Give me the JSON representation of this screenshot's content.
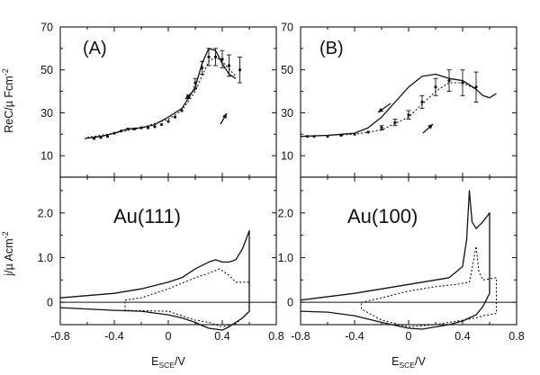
{
  "figure": {
    "x_tick_labels": [
      "-0.8",
      "-0.4",
      "0",
      "0.4",
      "0.8"
    ],
    "x_label_main": "E",
    "x_label_sub": "SCE",
    "x_label_unit": "/V",
    "top_y_label": "ReC/µ Fcm",
    "top_y_label_exp": "-2",
    "bottom_y_label": "j/µ Acm",
    "bottom_y_label_exp": "-2",
    "top_y_ticks": [
      "10",
      "30",
      "50",
      "70"
    ],
    "bottom_y_ticks": [
      "0",
      "1.0",
      "2.0"
    ]
  },
  "panels": {
    "A": {
      "label": "(A)",
      "sample": "Au(111)"
    },
    "B": {
      "label": "(B)",
      "sample": "Au(100)"
    }
  },
  "chart_data": [
    {
      "id": "A-top",
      "type": "line",
      "title": "(A)",
      "xlabel": "E_SCE/V",
      "ylabel": "ReC/µ Fcm-2",
      "xlim": [
        -0.8,
        0.8
      ],
      "ylim": [
        0,
        70
      ],
      "series": [
        {
          "name": "solid",
          "style": "solid",
          "x": [
            -0.62,
            -0.5,
            -0.4,
            -0.3,
            -0.2,
            -0.1,
            0.0,
            0.1,
            0.2,
            0.25,
            0.3,
            0.35,
            0.4,
            0.45,
            0.5
          ],
          "y": [
            18,
            19,
            20.5,
            22.5,
            23,
            24.5,
            28,
            32,
            42,
            53,
            60,
            59,
            53,
            48,
            46
          ]
        },
        {
          "name": "dotted",
          "style": "dotted",
          "x": [
            -0.6,
            -0.4,
            -0.2,
            0.0,
            0.1,
            0.2,
            0.3,
            0.35,
            0.4,
            0.5
          ],
          "y": [
            18.5,
            20.5,
            23,
            27,
            31,
            40,
            54,
            56,
            54,
            47
          ]
        },
        {
          "name": "experimental",
          "style": "points",
          "x": [
            -0.55,
            -0.5,
            -0.45,
            -0.4,
            -0.35,
            -0.3,
            -0.25,
            -0.2,
            -0.15,
            -0.1,
            -0.05,
            0.0,
            0.05,
            0.1,
            0.15,
            0.2,
            0.25,
            0.3,
            0.35,
            0.4,
            0.45,
            0.53
          ],
          "y": [
            18,
            18.5,
            19,
            20.5,
            21.5,
            22.5,
            22.5,
            23,
            23,
            23.5,
            24.5,
            26,
            28,
            31,
            37,
            44,
            51,
            56,
            56,
            55,
            52,
            50
          ],
          "err": [
            0,
            0,
            0,
            0,
            0,
            0,
            0,
            0,
            0,
            0,
            0,
            0,
            0,
            0,
            0,
            2,
            3,
            4,
            4,
            4,
            5,
            6
          ]
        }
      ]
    },
    {
      "id": "A-bottom",
      "type": "line",
      "title": "Au(111)",
      "xlabel": "E_SCE/V",
      "ylabel": "j/µ Acm-2",
      "xlim": [
        -0.8,
        0.8
      ],
      "ylim": [
        -0.5,
        2.8
      ],
      "series": [
        {
          "name": "solid",
          "style": "solid",
          "x": [
            -0.8,
            -0.6,
            -0.4,
            -0.2,
            0.0,
            0.1,
            0.2,
            0.3,
            0.35,
            0.4,
            0.45,
            0.5,
            0.55,
            0.6,
            0.6,
            0.55,
            0.5,
            0.45,
            0.4,
            0.35,
            0.3,
            0.25,
            0.2,
            0.1,
            0.0,
            -0.2,
            -0.4,
            -0.6,
            -0.8
          ],
          "y": [
            0.1,
            0.15,
            0.2,
            0.3,
            0.45,
            0.55,
            0.75,
            0.9,
            0.95,
            0.9,
            0.9,
            0.95,
            1.2,
            1.6,
            -0.2,
            -0.35,
            -0.45,
            -0.55,
            -0.62,
            -0.6,
            -0.58,
            -0.52,
            -0.45,
            -0.35,
            -0.28,
            -0.2,
            -0.18,
            -0.15,
            -0.12
          ]
        },
        {
          "name": "dotted",
          "style": "dotted",
          "x": [
            -0.32,
            -0.2,
            0.0,
            0.2,
            0.3,
            0.38,
            0.45,
            0.5,
            0.6,
            0.6,
            0.55,
            0.5,
            0.4,
            0.35,
            0.3,
            0.2,
            0.1,
            0.0,
            -0.32,
            -0.32
          ],
          "y": [
            0.05,
            0.1,
            0.3,
            0.55,
            0.65,
            0.75,
            0.6,
            0.45,
            0.45,
            -0.2,
            -0.35,
            -0.48,
            -0.55,
            -0.5,
            -0.45,
            -0.4,
            -0.3,
            -0.2,
            -0.18,
            0.05
          ]
        }
      ]
    },
    {
      "id": "B-top",
      "type": "line",
      "title": "(B)",
      "xlabel": "E_SCE/V",
      "ylabel": "ReC/µ Fcm-2",
      "xlim": [
        -0.8,
        0.8
      ],
      "ylim": [
        0,
        70
      ],
      "series": [
        {
          "name": "solid",
          "style": "solid",
          "x": [
            -0.8,
            -0.6,
            -0.4,
            -0.3,
            -0.2,
            -0.1,
            0.0,
            0.1,
            0.2,
            0.3,
            0.4,
            0.5,
            0.55,
            0.6,
            0.65
          ],
          "y": [
            19,
            19.5,
            20.5,
            23,
            28,
            35,
            42,
            47,
            48,
            46,
            45,
            41,
            38,
            37,
            39
          ]
        },
        {
          "name": "dotted",
          "style": "dotted",
          "x": [
            -0.8,
            -0.4,
            -0.2,
            0.0,
            0.2,
            0.3,
            0.4,
            0.5
          ],
          "y": [
            19,
            20,
            22,
            28,
            40,
            44,
            44,
            41
          ]
        },
        {
          "name": "experimental",
          "style": "points",
          "x": [
            -0.75,
            -0.7,
            -0.6,
            -0.5,
            -0.4,
            -0.3,
            -0.2,
            -0.1,
            0.0,
            0.1,
            0.2,
            0.3,
            0.4,
            0.5
          ],
          "y": [
            19,
            19,
            19,
            19.5,
            20,
            21,
            23,
            25.5,
            29,
            35,
            42,
            45,
            44,
            42
          ],
          "err": [
            0,
            0,
            0,
            0,
            0,
            0,
            1,
            1.5,
            2,
            3,
            4,
            5,
            6,
            7
          ]
        }
      ]
    },
    {
      "id": "B-bottom",
      "type": "line",
      "title": "Au(100)",
      "xlabel": "E_SCE/V",
      "ylabel": "j/µ Acm-2",
      "xlim": [
        -0.8,
        0.8
      ],
      "ylim": [
        -0.5,
        2.8
      ],
      "series": [
        {
          "name": "solid",
          "style": "solid",
          "x": [
            -0.8,
            -0.4,
            0.0,
            0.2,
            0.3,
            0.4,
            0.43,
            0.45,
            0.47,
            0.5,
            0.55,
            0.6,
            0.6,
            0.55,
            0.5,
            0.45,
            0.4,
            0.3,
            0.2,
            0.1,
            0.0,
            -0.2,
            -0.4,
            -0.6,
            -0.8
          ],
          "y": [
            0.05,
            0.2,
            0.4,
            0.5,
            0.55,
            0.8,
            1.4,
            2.5,
            1.8,
            1.65,
            1.8,
            2.0,
            0.2,
            -0.1,
            -0.28,
            -0.35,
            -0.42,
            -0.5,
            -0.55,
            -0.6,
            -0.58,
            -0.45,
            -0.3,
            -0.22,
            -0.2
          ]
        },
        {
          "name": "dotted",
          "style": "dotted",
          "x": [
            -0.35,
            -0.2,
            0.0,
            0.2,
            0.35,
            0.45,
            0.48,
            0.5,
            0.52,
            0.55,
            0.65,
            0.65,
            0.55,
            0.5,
            0.4,
            0.3,
            0.2,
            0.0,
            -0.2,
            -0.35,
            -0.35
          ],
          "y": [
            0.0,
            0.1,
            0.25,
            0.35,
            0.4,
            0.45,
            0.9,
            1.25,
            0.7,
            0.5,
            0.55,
            -0.25,
            -0.3,
            -0.35,
            -0.4,
            -0.45,
            -0.5,
            -0.55,
            -0.4,
            -0.15,
            0.0
          ]
        }
      ]
    }
  ]
}
